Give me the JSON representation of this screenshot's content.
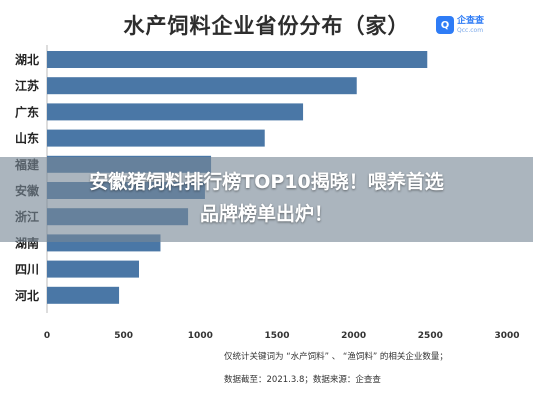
{
  "chart_data": {
    "type": "bar",
    "orientation": "horizontal",
    "title": "水产饲料企业省份分布（家）",
    "categories": [
      "湖北",
      "江苏",
      "广东",
      "山东",
      "福建",
      "安徽",
      "浙江",
      "湖南",
      "四川",
      "河北"
    ],
    "values": [
      2480,
      2020,
      1670,
      1420,
      1070,
      1030,
      920,
      740,
      600,
      470
    ],
    "xlim": [
      0,
      3000
    ],
    "xticks": [
      "0",
      "500",
      "1000",
      "1500",
      "2000",
      "2500",
      "3000"
    ],
    "bar_color": "#4a77a6",
    "grid": false,
    "legend": "none"
  },
  "logo": {
    "mark": "Q",
    "name": "企查查",
    "sub": "Qcc.com",
    "color": "#2e7cf6"
  },
  "overlay": {
    "line1": "安徽猪饲料排行榜TOP10揭晓！喂养首选",
    "line2": "品牌榜单出炉！"
  },
  "notes": {
    "line1": "仅统计关键词为 “水产饲料” 、 “渔饲料” 的相关企业数量；",
    "line2": "数据截至：2021.3.8；数据来源：企查查"
  }
}
